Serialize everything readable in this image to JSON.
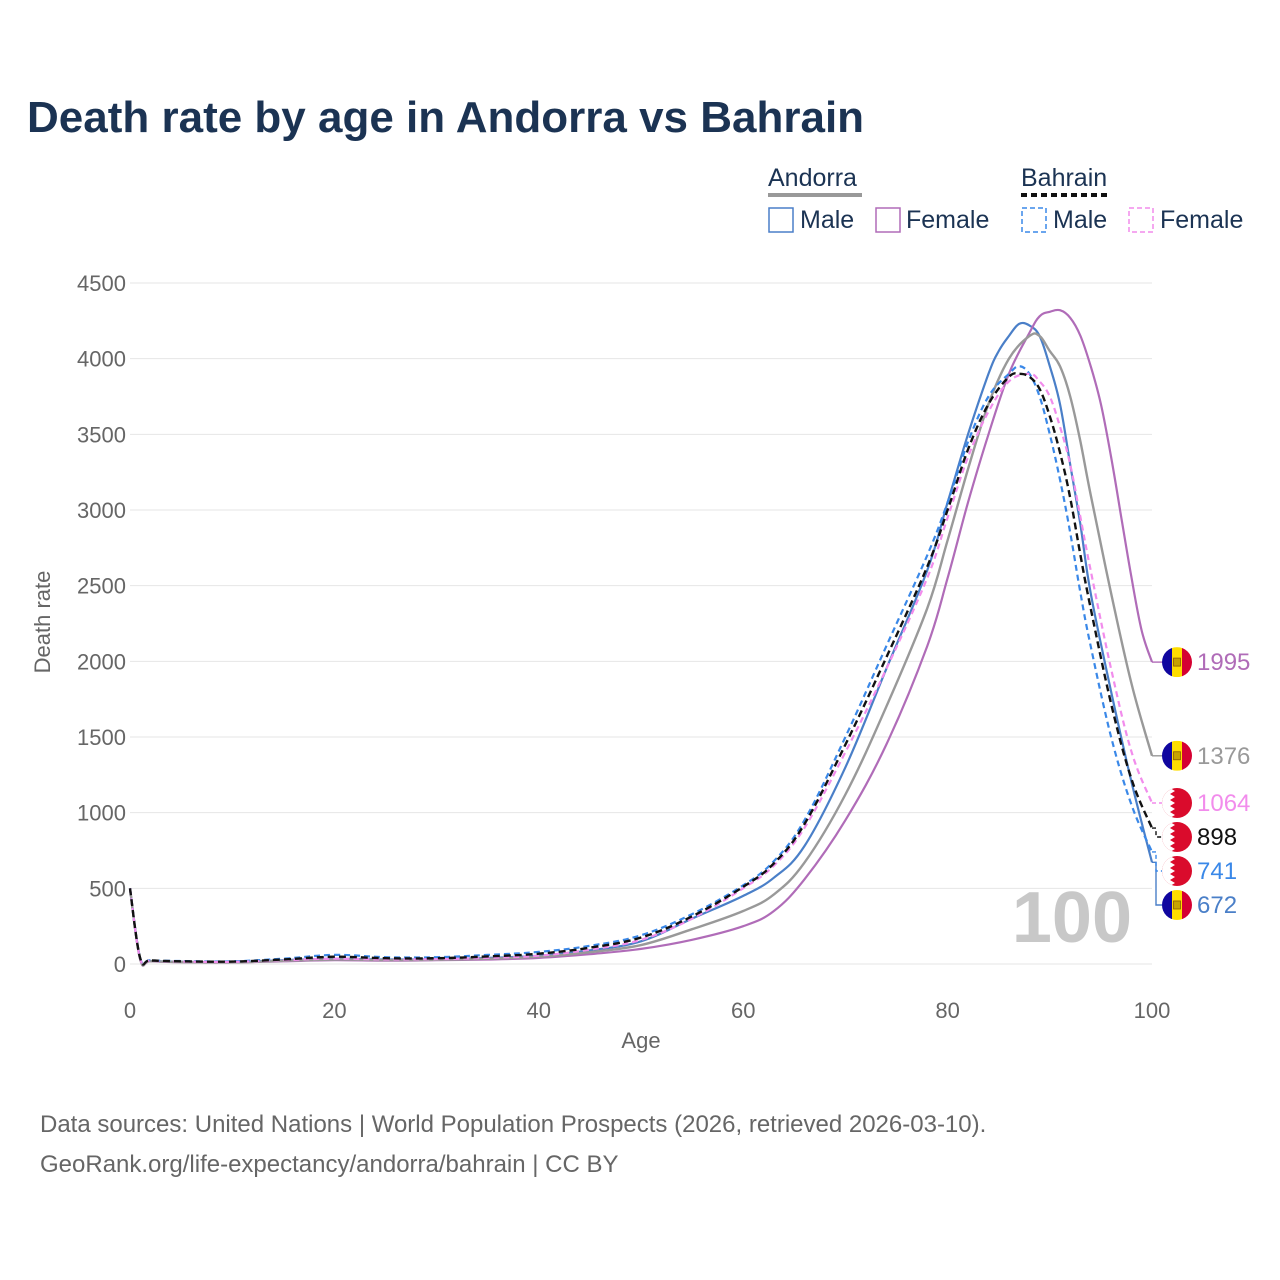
{
  "chart_data": {
    "type": "line",
    "title": "Death rate by age in Andorra vs Bahrain",
    "xlabel": "Age",
    "ylabel": "Death rate",
    "xlim": [
      0,
      100
    ],
    "ylim": [
      0,
      4500
    ],
    "xticks": [
      0,
      20,
      40,
      60,
      80,
      100
    ],
    "yticks": [
      0,
      500,
      1000,
      1500,
      2000,
      2500,
      3000,
      3500,
      4000,
      4500
    ],
    "grid": true,
    "year_label": "100",
    "legend": {
      "groups": [
        {
          "country": "Andorra",
          "entries": [
            "Male",
            "Female"
          ]
        },
        {
          "country": "Bahrain",
          "entries": [
            "Male",
            "Female"
          ]
        }
      ]
    },
    "series": [
      {
        "name": "Andorra Male",
        "color": "#4a7fc8",
        "dash": "solid",
        "end_value": 672,
        "end_label": "672",
        "flag": "andorra",
        "points": [
          [
            0,
            500
          ],
          [
            1,
            35
          ],
          [
            2,
            20
          ],
          [
            5,
            15
          ],
          [
            10,
            12
          ],
          [
            15,
            25
          ],
          [
            20,
            35
          ],
          [
            25,
            30
          ],
          [
            30,
            32
          ],
          [
            35,
            40
          ],
          [
            40,
            55
          ],
          [
            45,
            90
          ],
          [
            50,
            150
          ],
          [
            55,
            300
          ],
          [
            60,
            450
          ],
          [
            63,
            570
          ],
          [
            66,
            780
          ],
          [
            70,
            1300
          ],
          [
            74,
            1950
          ],
          [
            78,
            2600
          ],
          [
            80,
            3050
          ],
          [
            82,
            3500
          ],
          [
            84,
            3900
          ],
          [
            85,
            4050
          ],
          [
            86,
            4150
          ],
          [
            87,
            4230
          ],
          [
            88,
            4220
          ],
          [
            89,
            4150
          ],
          [
            90,
            3950
          ],
          [
            91,
            3700
          ],
          [
            92,
            3300
          ],
          [
            93,
            2900
          ],
          [
            94,
            2450
          ],
          [
            96,
            1800
          ],
          [
            98,
            1200
          ],
          [
            100,
            672
          ]
        ]
      },
      {
        "name": "Andorra Female",
        "color": "#b06cb8",
        "dash": "solid",
        "end_value": 1995,
        "end_label": "1995",
        "flag": "andorra",
        "points": [
          [
            0,
            500
          ],
          [
            1,
            30
          ],
          [
            2,
            18
          ],
          [
            5,
            12
          ],
          [
            10,
            10
          ],
          [
            15,
            18
          ],
          [
            20,
            25
          ],
          [
            25,
            22
          ],
          [
            30,
            25
          ],
          [
            35,
            30
          ],
          [
            40,
            40
          ],
          [
            45,
            65
          ],
          [
            50,
            100
          ],
          [
            55,
            160
          ],
          [
            60,
            250
          ],
          [
            63,
            350
          ],
          [
            66,
            560
          ],
          [
            70,
            950
          ],
          [
            74,
            1450
          ],
          [
            78,
            2100
          ],
          [
            80,
            2550
          ],
          [
            82,
            3050
          ],
          [
            84,
            3500
          ],
          [
            86,
            3900
          ],
          [
            88,
            4170
          ],
          [
            89,
            4280
          ],
          [
            90,
            4310
          ],
          [
            91,
            4320
          ],
          [
            92,
            4270
          ],
          [
            93,
            4150
          ],
          [
            94,
            3950
          ],
          [
            95,
            3700
          ],
          [
            96,
            3350
          ],
          [
            97,
            2950
          ],
          [
            98,
            2550
          ],
          [
            99,
            2200
          ],
          [
            100,
            1995
          ]
        ]
      },
      {
        "name": "Andorra Total",
        "color": "#999999",
        "dash": "solid",
        "end_value": 1376,
        "end_label": "1376",
        "flag": "andorra",
        "points": [
          [
            0,
            500
          ],
          [
            1,
            32
          ],
          [
            2,
            19
          ],
          [
            5,
            13
          ],
          [
            10,
            11
          ],
          [
            15,
            21
          ],
          [
            20,
            30
          ],
          [
            25,
            26
          ],
          [
            30,
            28
          ],
          [
            35,
            35
          ],
          [
            40,
            48
          ],
          [
            45,
            78
          ],
          [
            50,
            125
          ],
          [
            55,
            230
          ],
          [
            60,
            350
          ],
          [
            63,
            460
          ],
          [
            66,
            670
          ],
          [
            70,
            1120
          ],
          [
            74,
            1700
          ],
          [
            78,
            2350
          ],
          [
            80,
            2800
          ],
          [
            82,
            3270
          ],
          [
            84,
            3700
          ],
          [
            86,
            4000
          ],
          [
            88,
            4150
          ],
          [
            89,
            4150
          ],
          [
            90,
            4050
          ],
          [
            91,
            3950
          ],
          [
            92,
            3750
          ],
          [
            93,
            3450
          ],
          [
            94,
            3100
          ],
          [
            96,
            2450
          ],
          [
            98,
            1850
          ],
          [
            100,
            1376
          ]
        ]
      },
      {
        "name": "Bahrain Male",
        "color": "#3a88e8",
        "dash": "dashed",
        "end_value": 741,
        "end_label": "741",
        "flag": "bahrain",
        "points": [
          [
            0,
            500
          ],
          [
            1,
            40
          ],
          [
            2,
            25
          ],
          [
            5,
            20
          ],
          [
            10,
            18
          ],
          [
            15,
            35
          ],
          [
            20,
            60
          ],
          [
            25,
            45
          ],
          [
            30,
            45
          ],
          [
            35,
            60
          ],
          [
            40,
            80
          ],
          [
            45,
            120
          ],
          [
            50,
            190
          ],
          [
            55,
            330
          ],
          [
            60,
            520
          ],
          [
            63,
            680
          ],
          [
            66,
            950
          ],
          [
            70,
            1500
          ],
          [
            74,
            2100
          ],
          [
            78,
            2700
          ],
          [
            80,
            3050
          ],
          [
            82,
            3450
          ],
          [
            84,
            3750
          ],
          [
            86,
            3900
          ],
          [
            87,
            3950
          ],
          [
            88,
            3900
          ],
          [
            89,
            3750
          ],
          [
            90,
            3500
          ],
          [
            91,
            3200
          ],
          [
            92,
            2850
          ],
          [
            93,
            2450
          ],
          [
            94,
            2100
          ],
          [
            96,
            1500
          ],
          [
            98,
            1050
          ],
          [
            100,
            741
          ]
        ]
      },
      {
        "name": "Bahrain Female",
        "color": "#f28cec",
        "dash": "dashed",
        "end_value": 1064,
        "end_label": "1064",
        "flag": "bahrain",
        "points": [
          [
            0,
            500
          ],
          [
            1,
            35
          ],
          [
            2,
            22
          ],
          [
            5,
            16
          ],
          [
            10,
            14
          ],
          [
            15,
            25
          ],
          [
            20,
            35
          ],
          [
            25,
            30
          ],
          [
            30,
            32
          ],
          [
            35,
            40
          ],
          [
            40,
            55
          ],
          [
            45,
            95
          ],
          [
            50,
            160
          ],
          [
            55,
            300
          ],
          [
            60,
            500
          ],
          [
            63,
            650
          ],
          [
            66,
            900
          ],
          [
            70,
            1400
          ],
          [
            74,
            1950
          ],
          [
            78,
            2550
          ],
          [
            80,
            2950
          ],
          [
            82,
            3350
          ],
          [
            84,
            3650
          ],
          [
            86,
            3850
          ],
          [
            88,
            3900
          ],
          [
            89,
            3850
          ],
          [
            90,
            3750
          ],
          [
            91,
            3550
          ],
          [
            92,
            3300
          ],
          [
            93,
            2950
          ],
          [
            94,
            2600
          ],
          [
            96,
            1950
          ],
          [
            98,
            1400
          ],
          [
            100,
            1064
          ]
        ]
      },
      {
        "name": "Bahrain Total",
        "color": "#111111",
        "dash": "dashed",
        "end_value": 898,
        "end_label": "898",
        "flag": "bahrain",
        "points": [
          [
            0,
            500
          ],
          [
            1,
            38
          ],
          [
            2,
            24
          ],
          [
            5,
            18
          ],
          [
            10,
            16
          ],
          [
            15,
            30
          ],
          [
            20,
            48
          ],
          [
            25,
            38
          ],
          [
            30,
            38
          ],
          [
            35,
            50
          ],
          [
            40,
            68
          ],
          [
            45,
            108
          ],
          [
            50,
            175
          ],
          [
            55,
            315
          ],
          [
            60,
            510
          ],
          [
            63,
            665
          ],
          [
            66,
            925
          ],
          [
            70,
            1450
          ],
          [
            74,
            2025
          ],
          [
            78,
            2625
          ],
          [
            80,
            3000
          ],
          [
            82,
            3400
          ],
          [
            84,
            3700
          ],
          [
            86,
            3880
          ],
          [
            87,
            3900
          ],
          [
            88,
            3880
          ],
          [
            89,
            3800
          ],
          [
            90,
            3620
          ],
          [
            91,
            3380
          ],
          [
            92,
            3080
          ],
          [
            93,
            2700
          ],
          [
            94,
            2350
          ],
          [
            96,
            1720
          ],
          [
            98,
            1220
          ],
          [
            100,
            898
          ]
        ]
      }
    ]
  },
  "footer": {
    "line1": "Data sources: United Nations | World Population Prospects (2026, retrieved 2026-03-10).",
    "line2": "GeoRank.org/life-expectancy/andorra/bahrain | CC BY"
  }
}
